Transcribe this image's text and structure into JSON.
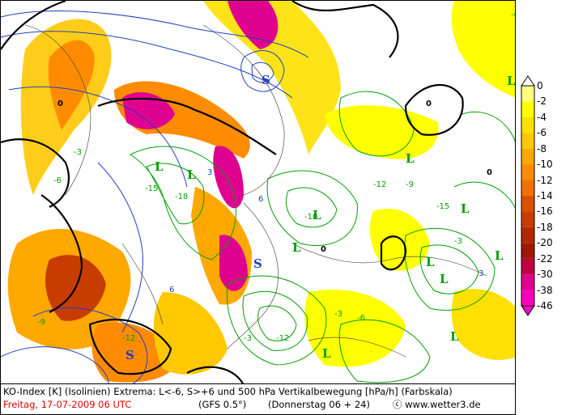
{
  "footer": {
    "line1": "KO-Index [K] (Isolinien) Extrema: L<-6, S>+6 und 500 hPa Vertikalbewegung [hPa/h] (Farbskala)",
    "date": "Freitag, 17-07-2009  06 UTC",
    "model": "(GFS 0.5°)",
    "run": "(Donnerstag 06 + 24)",
    "copyright": "ⓒ www.wetter3.de"
  },
  "colorbar": {
    "labels": [
      "0",
      "-2",
      "-4",
      "-6",
      "-8",
      "-10",
      "-12",
      "-14",
      "-16",
      "-18",
      "-20",
      "-22",
      "-30",
      "-38",
      "-46"
    ],
    "colors": [
      "#ffff80",
      "#ffff00",
      "#ffe000",
      "#ffc800",
      "#ffa800",
      "#ff8c00",
      "#f07000",
      "#dc5000",
      "#c83c00",
      "#b42800",
      "#a01800",
      "#c00040",
      "#e00090",
      "#ff00c0"
    ]
  },
  "map": {
    "lows": [
      {
        "label": "L"
      },
      {
        "label": "L"
      },
      {
        "label": "L"
      },
      {
        "label": "L"
      },
      {
        "label": "L"
      },
      {
        "label": "L"
      },
      {
        "label": "L"
      },
      {
        "label": "L"
      },
      {
        "label": "L"
      },
      {
        "label": "L"
      },
      {
        "label": "L"
      },
      {
        "label": "L"
      }
    ],
    "highs": [
      {
        "label": "S"
      },
      {
        "label": "S"
      },
      {
        "label": "S"
      }
    ],
    "contour_labels": [
      "0",
      "-3",
      "-6",
      "-9",
      "-12",
      "-15",
      "-18",
      "3",
      "6",
      "-10",
      "0",
      "-3",
      "-6",
      "-12",
      "-9",
      "-15",
      "-3",
      "3",
      "0",
      "-6",
      "6",
      "-12",
      "-3",
      "0"
    ]
  }
}
